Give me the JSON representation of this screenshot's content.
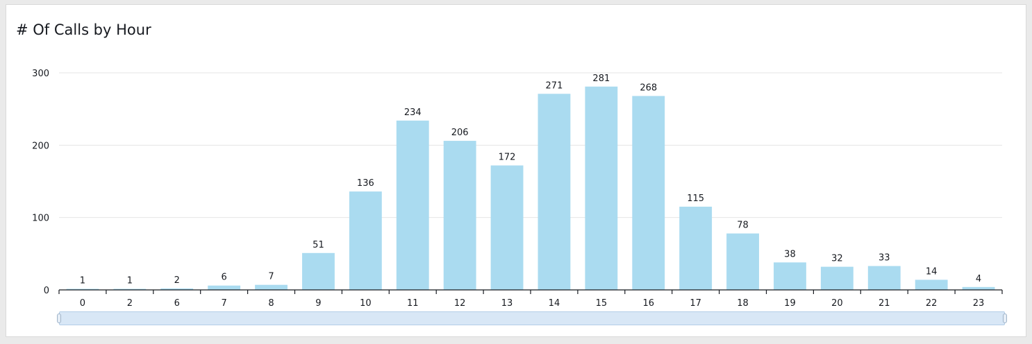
{
  "chart_data": {
    "type": "bar",
    "title": "# Of Calls by Hour",
    "xlabel": "",
    "ylabel": "",
    "categories": [
      "0",
      "2",
      "6",
      "7",
      "8",
      "9",
      "10",
      "11",
      "12",
      "13",
      "14",
      "15",
      "16",
      "17",
      "18",
      "19",
      "20",
      "21",
      "22",
      "23"
    ],
    "values": [
      1,
      1,
      2,
      6,
      7,
      51,
      136,
      234,
      206,
      172,
      271,
      281,
      268,
      115,
      78,
      38,
      32,
      33,
      14,
      4
    ],
    "ylim": [
      0,
      300
    ],
    "yticks": [
      0,
      100,
      200,
      300
    ],
    "grid": true,
    "legend": "none",
    "bar_color": "#aadbf0",
    "data_labels": true
  },
  "range_slider": {
    "track_color": "#d8e7f6"
  }
}
